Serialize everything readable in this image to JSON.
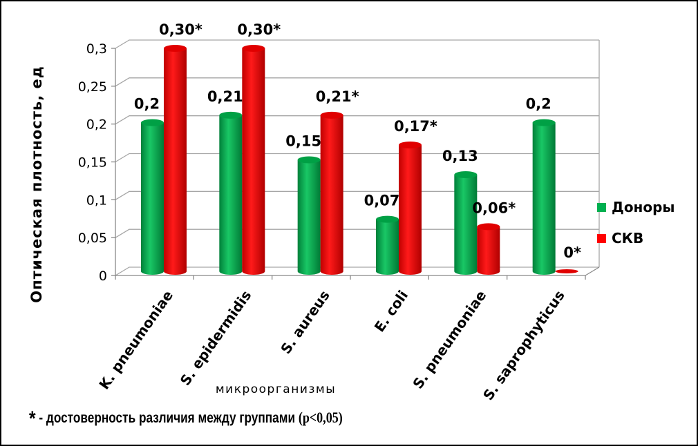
{
  "chart_data": {
    "type": "bar",
    "title": "",
    "ylabel": "Оптическая плотность, ед",
    "xlabel": "микроорганизмы",
    "ylim": [
      0,
      0.3
    ],
    "yticks": [
      "0",
      "0,05",
      "0,1",
      "0,15",
      "0,2",
      "0,25",
      "0,3"
    ],
    "ytick_values": [
      0,
      0.05,
      0.1,
      0.15,
      0.2,
      0.25,
      0.3
    ],
    "categories": [
      "K. pneumoniae",
      "S. epidermidis",
      "S. aureus",
      "E. coli",
      "S. pneumoniae",
      "S. saprophyticus"
    ],
    "series": [
      {
        "name": "Доноры",
        "color": "#00b050",
        "values": [
          0.2,
          0.21,
          0.15,
          0.07,
          0.13,
          0.2
        ],
        "labels": [
          "0,2",
          "0,21",
          "0,15",
          "0,07",
          "0,13",
          "0,2"
        ]
      },
      {
        "name": "СКВ",
        "color": "#ff0000",
        "values": [
          0.3,
          0.3,
          0.21,
          0.17,
          0.06,
          0
        ],
        "labels": [
          "0,30*",
          "0,30*",
          "0,21*",
          "0,17*",
          "0,06*",
          "0*"
        ]
      }
    ],
    "legend_position": "right",
    "grid": true
  },
  "footnote": {
    "star": "*",
    "text": " - достоверность различия между группами ",
    "p": "(p<0,05)"
  }
}
